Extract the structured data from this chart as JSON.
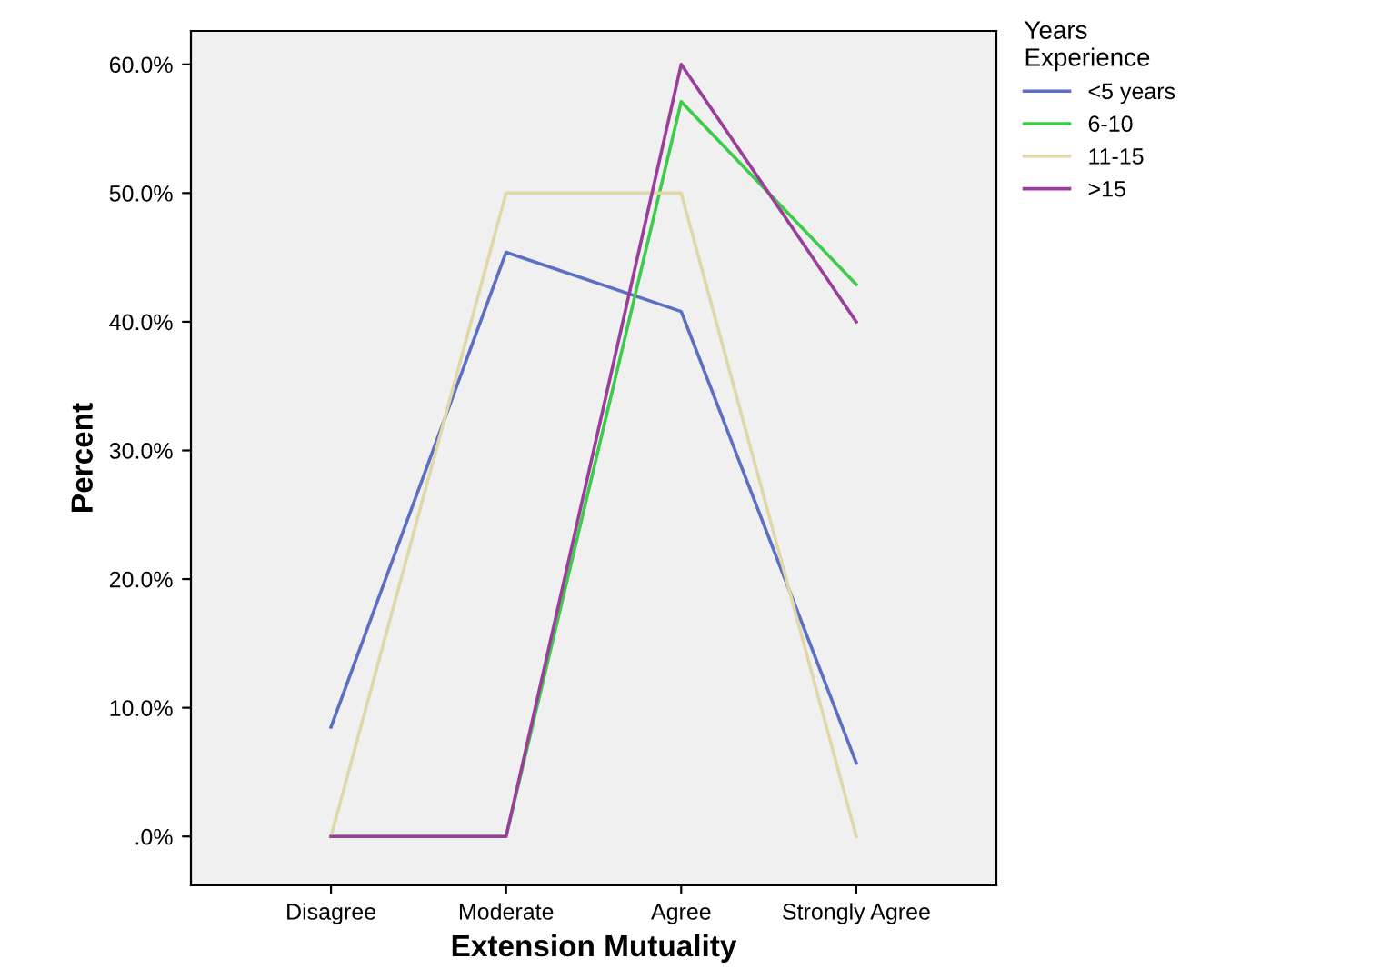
{
  "chart_data": {
    "type": "line",
    "xlabel": "Extension Mutuality",
    "ylabel": "Percent",
    "legend_title": "Years\nExperience",
    "legend": "top right",
    "grid": false,
    "marker": "none",
    "line_style": "solid",
    "categories": [
      "Disagree",
      "Moderate",
      "Agree",
      "Strongly Agree"
    ],
    "ylim": [
      -3.8,
      62.6
    ],
    "yticks": [
      {
        "value": 0,
        "label": ".0%"
      },
      {
        "value": 10,
        "label": "10.0%"
      },
      {
        "value": 20,
        "label": "20.0%"
      },
      {
        "value": 30,
        "label": "30.0%"
      },
      {
        "value": 40,
        "label": "40.0%"
      },
      {
        "value": 50,
        "label": "50.0%"
      },
      {
        "value": 60,
        "label": "60.0%"
      }
    ],
    "series": [
      {
        "name": "<5 years",
        "color": "#5b6fc4",
        "values": [
          8.5,
          45.4,
          40.8,
          5.7
        ]
      },
      {
        "name": "6-10",
        "color": "#3dcc4a",
        "values": [
          0,
          0,
          57.1,
          42.9
        ]
      },
      {
        "name": "11-15",
        "color": "#e0d8a8",
        "values": [
          0,
          50,
          50,
          0
        ]
      },
      {
        "name": ">15",
        "color": "#9b3e9b",
        "values": [
          0,
          0,
          60,
          40
        ]
      }
    ]
  }
}
